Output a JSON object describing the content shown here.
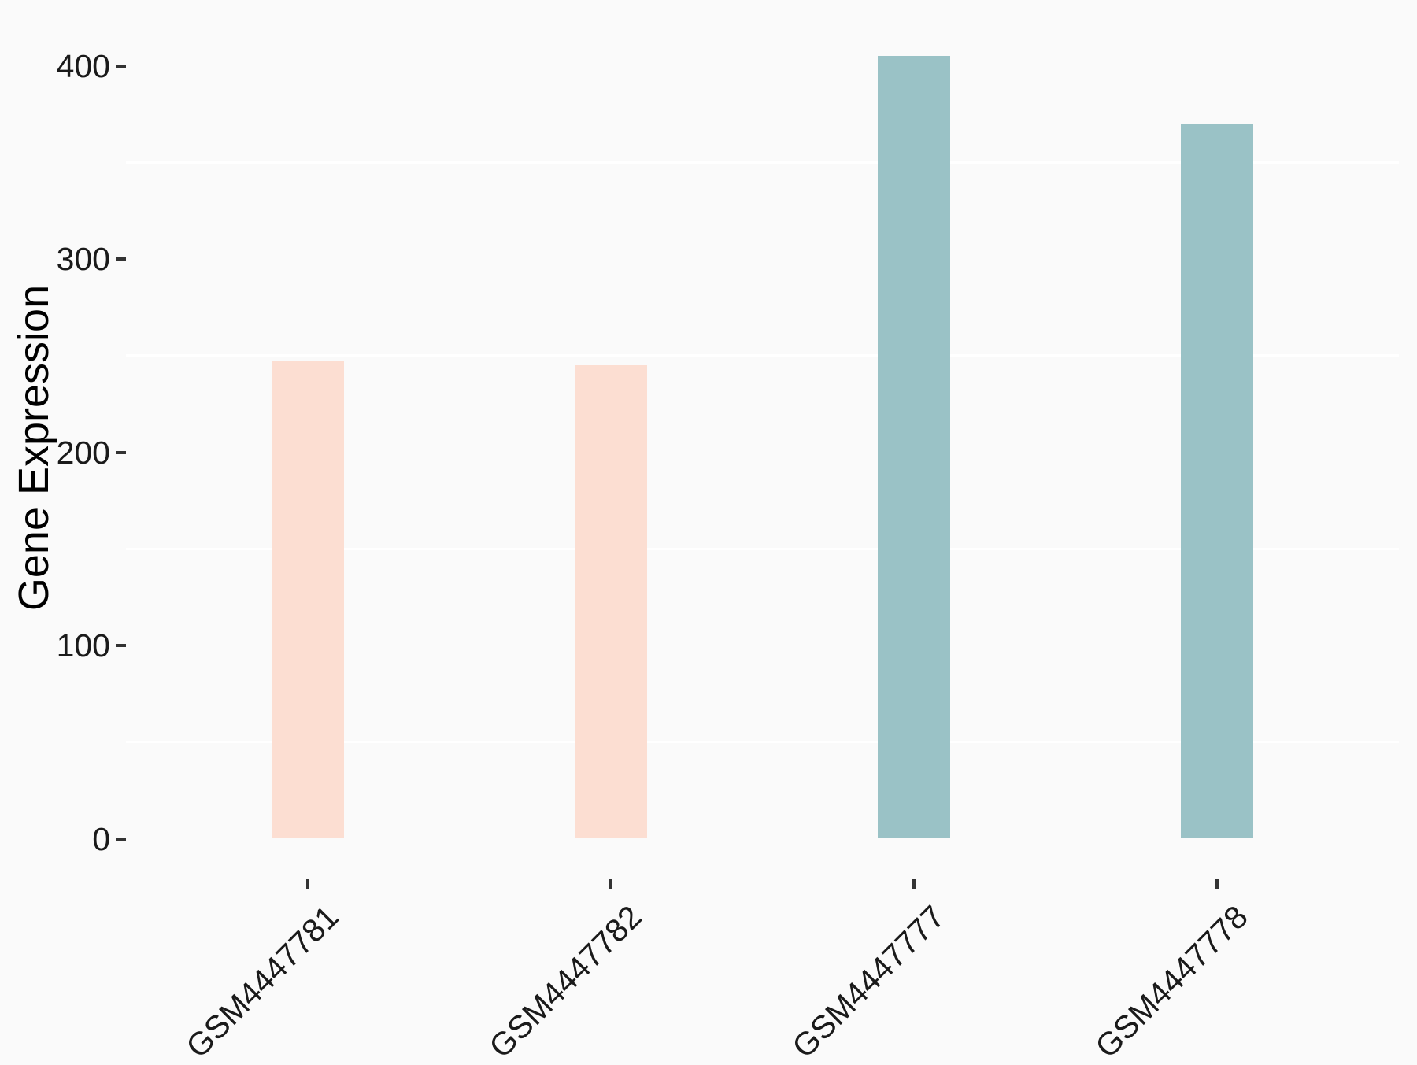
{
  "chart_data": {
    "type": "bar",
    "title": "",
    "ylabel": "Gene Expression",
    "xlabel": "",
    "categories": [
      "GSM4447781",
      "GSM4447782",
      "GSM4447777",
      "GSM4447778"
    ],
    "values": [
      247,
      245,
      405,
      370
    ],
    "bar_colors": [
      "#FCDED2",
      "#FCDED2",
      "#9AC2C6",
      "#9AC2C6"
    ],
    "y_ticks": [
      0,
      100,
      200,
      300,
      400
    ],
    "minor_gridlines": [
      50,
      150,
      250,
      350
    ],
    "ylim": [
      -20,
      425
    ],
    "x_tick_label_angle_deg": 45,
    "legend_position": "none",
    "grid": "minor-horizontal-only",
    "colors": {
      "background": "#FAFAFA",
      "gridline": "#FFFFFF",
      "axis_tick": "#333333",
      "axis_text": "#1A1A1A",
      "axis_title": "#000000"
    }
  }
}
